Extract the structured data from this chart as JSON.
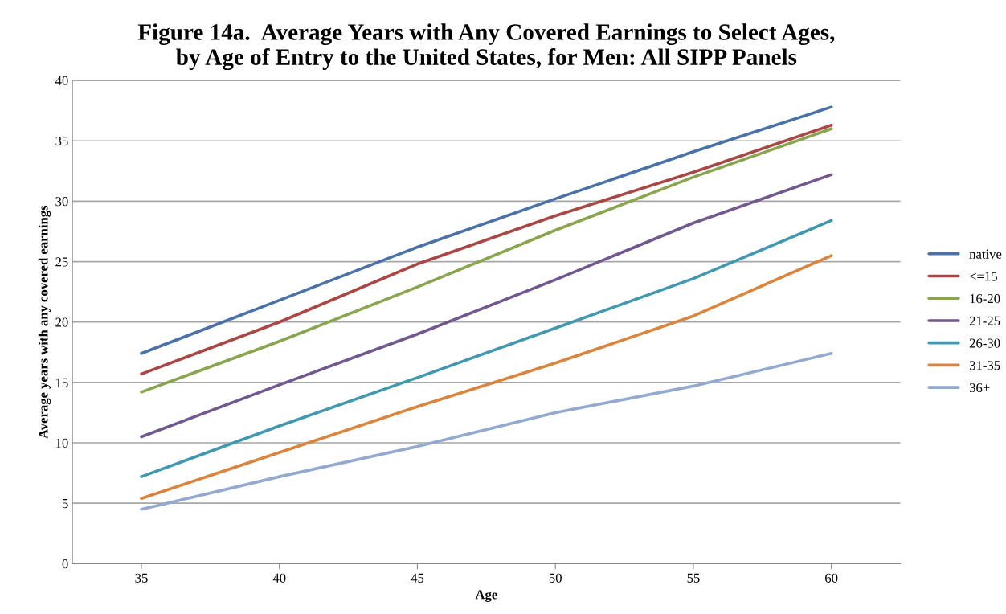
{
  "chart_data": {
    "type": "line",
    "title": "Figure 14a.  Average Years with Any Covered Earnings to Select Ages,\nby Age of Entry to the United States, for Men: All SIPP Panels",
    "xlabel": "Age",
    "ylabel": "Average years with any covered earnings",
    "categories": [
      "35",
      "40",
      "45",
      "50",
      "55",
      "60"
    ],
    "ylim": [
      0,
      40
    ],
    "yticks": [
      0,
      5,
      10,
      15,
      20,
      25,
      30,
      35,
      40
    ],
    "grid": "y",
    "legend": "right",
    "marker": "none",
    "line_style": "solid",
    "series": [
      {
        "name": "native",
        "color": "#4a72a8",
        "values": [
          17.4,
          21.8,
          26.2,
          30.2,
          34.1,
          37.8
        ]
      },
      {
        "name": "<=15",
        "color": "#aa4643",
        "values": [
          15.7,
          20.0,
          24.8,
          28.8,
          32.4,
          36.3
        ]
      },
      {
        "name": "16-20",
        "color": "#89a54e",
        "values": [
          14.2,
          18.4,
          22.9,
          27.6,
          32.0,
          36.0
        ]
      },
      {
        "name": "21-25",
        "color": "#71588f",
        "values": [
          10.5,
          14.8,
          19.0,
          23.5,
          28.2,
          32.2
        ]
      },
      {
        "name": "26-30",
        "color": "#4198af",
        "values": [
          7.2,
          11.4,
          15.4,
          19.5,
          23.6,
          28.4
        ]
      },
      {
        "name": "31-35",
        "color": "#db843d",
        "values": [
          5.4,
          9.2,
          13.0,
          16.6,
          20.5,
          25.5
        ]
      },
      {
        "name": "36+",
        "color": "#93a9cf",
        "values": [
          4.5,
          7.2,
          9.7,
          12.5,
          14.7,
          17.4
        ]
      }
    ]
  }
}
